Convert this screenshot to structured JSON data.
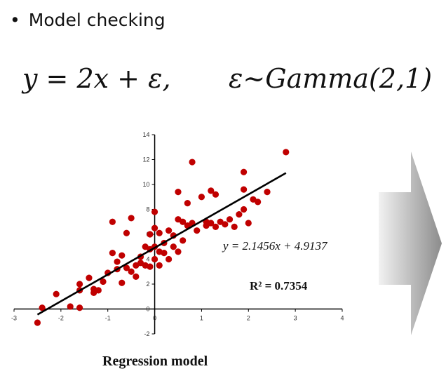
{
  "slide": {
    "bullet": "Model checking",
    "equation_left": "y = 2x + ε,",
    "equation_right": "ε~Gamma(2,1)",
    "caption": "Regression model"
  },
  "colors": {
    "points": "#c00000",
    "trendline": "#000000",
    "arrow_light": "#f2f2f2",
    "arrow_dark": "#8c8c8c"
  },
  "chart_data": {
    "type": "scatter",
    "xlim": [
      -3,
      4
    ],
    "ylim": [
      -2,
      14
    ],
    "x_ticks": [
      -3,
      -2,
      -1,
      0,
      1,
      2,
      3,
      4
    ],
    "y_ticks": [
      -2,
      0,
      2,
      4,
      6,
      8,
      10,
      12,
      14
    ],
    "trendline": {
      "slope": 2.1456,
      "intercept": 4.9137,
      "x_range": [
        -2.5,
        2.8
      ]
    },
    "equation_label": "y = 2.1456x + 4.9137",
    "r2_label": "R² = 0.7354",
    "points": [
      [
        -2.5,
        -1.1
      ],
      [
        -2.4,
        0.1
      ],
      [
        -2.1,
        1.2
      ],
      [
        -1.8,
        0.2
      ],
      [
        -1.6,
        0.1
      ],
      [
        -1.6,
        1.5
      ],
      [
        -1.6,
        2.0
      ],
      [
        -1.4,
        2.5
      ],
      [
        -1.3,
        1.3
      ],
      [
        -1.3,
        1.6
      ],
      [
        -1.2,
        1.5
      ],
      [
        -1.1,
        2.2
      ],
      [
        -1.0,
        2.9
      ],
      [
        -0.9,
        7.0
      ],
      [
        -0.9,
        4.5
      ],
      [
        -0.8,
        3.2
      ],
      [
        -0.8,
        3.8
      ],
      [
        -0.7,
        2.1
      ],
      [
        -0.7,
        4.3
      ],
      [
        -0.6,
        3.3
      ],
      [
        -0.6,
        6.1
      ],
      [
        -0.5,
        7.3
      ],
      [
        -0.5,
        3.0
      ],
      [
        -0.4,
        3.5
      ],
      [
        -0.4,
        2.6
      ],
      [
        -0.3,
        4.2
      ],
      [
        -0.3,
        3.7
      ],
      [
        -0.2,
        5.0
      ],
      [
        -0.2,
        3.5
      ],
      [
        -0.1,
        3.4
      ],
      [
        -0.1,
        4.8
      ],
      [
        -0.1,
        6.0
      ],
      [
        0.0,
        4.0
      ],
      [
        0.0,
        5.0
      ],
      [
        0.0,
        6.5
      ],
      [
        0.0,
        7.8
      ],
      [
        0.1,
        3.5
      ],
      [
        0.1,
        4.6
      ],
      [
        0.1,
        6.1
      ],
      [
        0.2,
        4.5
      ],
      [
        0.2,
        5.3
      ],
      [
        0.3,
        6.3
      ],
      [
        0.3,
        4.0
      ],
      [
        0.4,
        5.0
      ],
      [
        0.4,
        5.9
      ],
      [
        0.5,
        7.2
      ],
      [
        0.5,
        4.6
      ],
      [
        0.5,
        9.4
      ],
      [
        0.6,
        7.0
      ],
      [
        0.6,
        5.5
      ],
      [
        0.7,
        6.7
      ],
      [
        0.7,
        8.5
      ],
      [
        0.8,
        6.9
      ],
      [
        0.8,
        11.8
      ],
      [
        0.9,
        6.3
      ],
      [
        1.0,
        9.0
      ],
      [
        1.1,
        7.0
      ],
      [
        1.1,
        6.7
      ],
      [
        1.2,
        9.5
      ],
      [
        1.2,
        6.9
      ],
      [
        1.3,
        9.2
      ],
      [
        1.3,
        6.6
      ],
      [
        1.4,
        7.0
      ],
      [
        1.5,
        6.8
      ],
      [
        1.6,
        7.2
      ],
      [
        1.7,
        6.6
      ],
      [
        1.8,
        7.6
      ],
      [
        1.9,
        9.6
      ],
      [
        1.9,
        8.0
      ],
      [
        1.9,
        11.0
      ],
      [
        2.0,
        6.9
      ],
      [
        2.1,
        8.8
      ],
      [
        2.2,
        8.6
      ],
      [
        2.4,
        9.4
      ],
      [
        2.8,
        12.6
      ]
    ]
  }
}
